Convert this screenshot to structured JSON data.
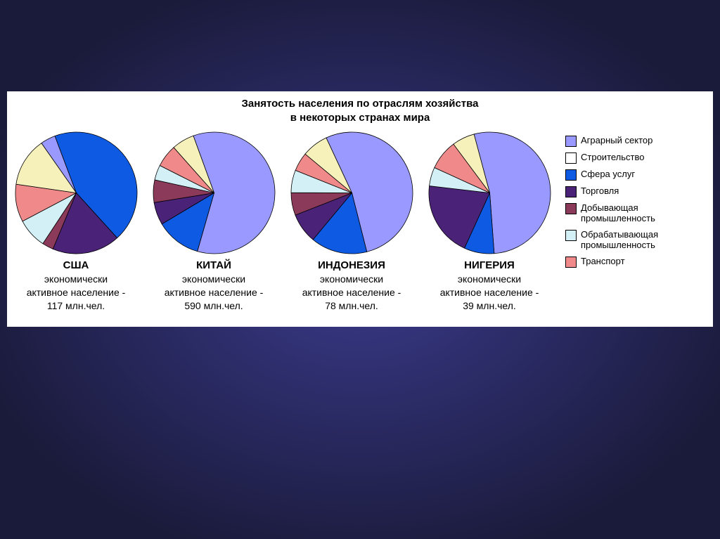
{
  "background": {
    "gradient_center": "#3a3a8c",
    "gradient_edge": "#1a1a3a"
  },
  "panel": {
    "background_color": "#ffffff"
  },
  "title": {
    "line1": "Занятость населения по отраслям хозяйства",
    "line2": "в некоторых странах мира",
    "fontsize": 15,
    "color": "#000000"
  },
  "categories": [
    {
      "key": "agro",
      "label": "Аграрный сектор",
      "color": "#9999ff"
    },
    {
      "key": "constr",
      "label": "Строительство",
      "color": "#ffffff"
    },
    {
      "key": "services",
      "label": "Сфера услуг",
      "color": "#0e5ae3"
    },
    {
      "key": "trade",
      "label": "Торговля",
      "color": "#4a2278"
    },
    {
      "key": "mining",
      "label": "Добывающая промышленность",
      "color": "#8b3a5a"
    },
    {
      "key": "manuf",
      "label": "Обрабатывающая промышленность",
      "color": "#d4f0f7"
    },
    {
      "key": "transport",
      "label": "Транспорт",
      "color": "#f08a8a"
    }
  ],
  "pies": [
    {
      "country": "США",
      "line1": "экономически",
      "line2": "активное население -",
      "line3": "117 млн.чел.",
      "start_angle_deg": -35,
      "values": {
        "agro": 4,
        "constr": 0,
        "services": 44,
        "trade": 18,
        "mining": 3,
        "manuf": 8,
        "transport": 10
      },
      "order": [
        "agro",
        "services",
        "trade",
        "mining",
        "manuf",
        "transport"
      ],
      "extra_slices": [
        {
          "color": "#f6f0bb",
          "value": 13
        }
      ]
    },
    {
      "country": "КИТАЙ",
      "line1": "экономически",
      "line2": "активное население -",
      "line3": "590 млн.чел.",
      "start_angle_deg": -20,
      "values": {
        "agro": 60,
        "constr": 0,
        "services": 12,
        "trade": 6,
        "mining": 6,
        "manuf": 4,
        "transport": 6
      },
      "order": [
        "agro",
        "services",
        "trade",
        "mining",
        "manuf",
        "transport"
      ],
      "extra_slices": [
        {
          "color": "#f6f0bb",
          "value": 6
        }
      ]
    },
    {
      "country": "ИНДОНЕЗИЯ",
      "line1": "экономически",
      "line2": "активное население -",
      "line3": "78 млн.чел.",
      "start_angle_deg": -25,
      "values": {
        "agro": 53,
        "constr": 0,
        "services": 15,
        "trade": 8,
        "mining": 6,
        "manuf": 6,
        "transport": 5
      },
      "order": [
        "agro",
        "services",
        "trade",
        "mining",
        "manuf",
        "transport"
      ],
      "extra_slices": [
        {
          "color": "#f6f0bb",
          "value": 7
        }
      ]
    },
    {
      "country": "НИГЕРИЯ",
      "line1": "экономически",
      "line2": "активное население -",
      "line3": "39 млн.чел.",
      "start_angle_deg": -15,
      "values": {
        "agro": 53,
        "constr": 0,
        "services": 8,
        "trade": 20,
        "mining": 0,
        "manuf": 5,
        "transport": 8
      },
      "order": [
        "agro",
        "services",
        "trade",
        "manuf",
        "transport"
      ],
      "extra_slices": [
        {
          "color": "#f6f0bb",
          "value": 6
        }
      ]
    }
  ],
  "pie_style": {
    "diameter": 175,
    "stroke": "#000000",
    "stroke_width": 0.8
  },
  "legend_style": {
    "fontsize": 13,
    "color": "#000000",
    "swatch_border": "#000000"
  },
  "label_style": {
    "fontsize": 14,
    "country_fontsize": 15,
    "color": "#000000"
  }
}
